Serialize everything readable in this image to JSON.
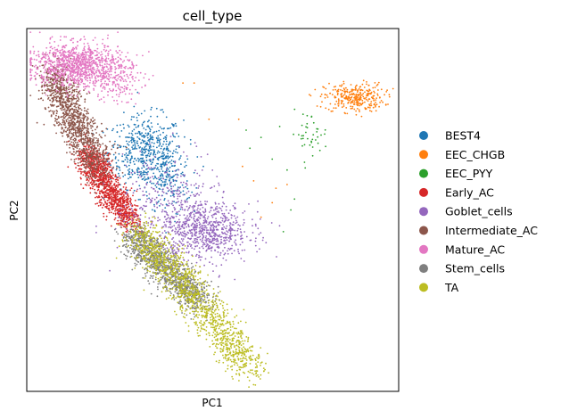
{
  "chart_data": {
    "type": "scatter",
    "title": "cell_type",
    "xlabel": "PC1",
    "ylabel": "PC2",
    "xlim": [
      0,
      100
    ],
    "ylim": [
      0,
      100
    ],
    "grid": false,
    "ticks": "none",
    "legend_placement": "right, outside plot",
    "series": [
      {
        "name": "BEST4",
        "color": "#1f77b4",
        "clusters": [
          {
            "cx": 32,
            "cy": 66,
            "sx": 5,
            "sy": 5,
            "n": 520
          },
          {
            "cx": 38,
            "cy": 58,
            "sx": 3,
            "sy": 5,
            "n": 160
          }
        ]
      },
      {
        "name": "EEC_CHGB",
        "color": "#ff7f0e",
        "clusters": [
          {
            "cx": 88,
            "cy": 81,
            "sx": 4,
            "sy": 2,
            "n": 310
          }
        ],
        "scatter": [
          [
            42,
            85
          ],
          [
            45,
            85
          ],
          [
            49,
            75
          ],
          [
            57,
            75
          ],
          [
            61,
            58
          ],
          [
            67,
            56
          ],
          [
            70,
            57
          ],
          [
            66,
            52
          ],
          [
            63,
            48
          ],
          [
            58,
            62
          ]
        ]
      },
      {
        "name": "EEC_PYY",
        "color": "#2ca02c",
        "clusters": [
          {
            "cx": 76,
            "cy": 71,
            "sx": 2.5,
            "sy": 3,
            "n": 40
          }
        ],
        "scatter": [
          [
            59,
            72
          ],
          [
            63,
            70
          ],
          [
            60,
            67
          ],
          [
            66,
            64
          ],
          [
            68,
            73
          ],
          [
            70,
            61
          ],
          [
            71,
            50
          ],
          [
            69,
            44
          ],
          [
            72,
            53
          ]
        ]
      },
      {
        "name": "Early_AC",
        "color": "#d62728",
        "path": [
          [
            16,
            66
          ],
          [
            20,
            59
          ],
          [
            25,
            51
          ],
          [
            28,
            47
          ]
        ],
        "spread": 1.9,
        "n": 1200
      },
      {
        "name": "Goblet_cells",
        "color": "#9467bd",
        "clusters": [
          {
            "cx": 48,
            "cy": 44,
            "sx": 6,
            "sy": 4,
            "n": 700
          },
          {
            "cx": 38,
            "cy": 52,
            "sx": 7,
            "sy": 7,
            "n": 300
          }
        ]
      },
      {
        "name": "Intermediate_AC",
        "color": "#8c564b",
        "path": [
          [
            7,
            88
          ],
          [
            10,
            80
          ],
          [
            15,
            70
          ],
          [
            20,
            61
          ]
        ],
        "spread": 2.4,
        "n": 1200
      },
      {
        "name": "Mature_AC",
        "color": "#e377c2",
        "clusters": [
          {
            "cx": 13,
            "cy": 90,
            "sx": 6,
            "sy": 3,
            "n": 1000
          },
          {
            "cx": 23,
            "cy": 86,
            "sx": 4,
            "sy": 3,
            "n": 200
          }
        ]
      },
      {
        "name": "Stem_cells",
        "color": "#7f7f7f",
        "path": [
          [
            28,
            43
          ],
          [
            35,
            36
          ],
          [
            42,
            29
          ],
          [
            47,
            25
          ]
        ],
        "spread": 2.2,
        "n": 1100
      },
      {
        "name": "TA",
        "color": "#bcbd22",
        "path": [
          [
            30,
            44
          ],
          [
            40,
            32
          ],
          [
            50,
            20
          ],
          [
            58,
            9
          ],
          [
            61,
            6
          ]
        ],
        "spread": 2.6,
        "n": 1300
      }
    ],
    "legend_order": [
      "BEST4",
      "EEC_CHGB",
      "EEC_PYY",
      "Early_AC",
      "Goblet_cells",
      "Intermediate_AC",
      "Mature_AC",
      "Stem_cells",
      "TA"
    ]
  }
}
